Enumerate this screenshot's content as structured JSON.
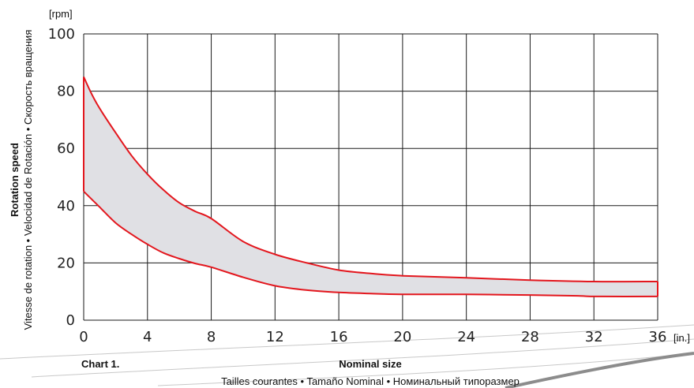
{
  "chart_data": {
    "type": "area",
    "title": "",
    "caption": "Chart 1.",
    "xlabel": "Nominal size",
    "xlabel_sub": "Tailles courantes • Tamaño Nominal • Номинальный типоразмер",
    "xunit": "[in.]",
    "ylabel": "Rotation speed",
    "ylabel_sub": "Vitesse de rotation • Velocidad de Rotación • Скорость вращения",
    "yunit": "[rpm]",
    "xlim": [
      0,
      36
    ],
    "ylim": [
      0,
      100
    ],
    "x_ticks": [
      0,
      4,
      8,
      12,
      16,
      20,
      24,
      28,
      32,
      36
    ],
    "x_tick_labels": [
      "0",
      "4",
      "8",
      "12",
      "16",
      "20",
      "24",
      "28",
      "32",
      "36"
    ],
    "y_ticks": [
      0,
      20,
      40,
      60,
      80,
      100
    ],
    "y_tick_labels": [
      "0",
      "20",
      "40",
      "60",
      "80",
      "100"
    ],
    "grid": true,
    "band_fill": "#e0e0e4",
    "line_color": "#e3161d",
    "series": [
      {
        "role": "upper",
        "x": [
          0,
          0.5,
          1,
          2,
          3,
          4,
          5,
          6,
          7,
          8,
          10,
          12,
          14,
          16,
          18,
          20,
          24,
          28,
          32,
          36
        ],
        "y": [
          85,
          79,
          74,
          65.5,
          57.5,
          51,
          45.5,
          41,
          38,
          35.5,
          27.5,
          23,
          20,
          17.5,
          16.3,
          15.5,
          14.8,
          14,
          13.5,
          13.5
        ]
      },
      {
        "role": "lower",
        "x": [
          0,
          1,
          2,
          3,
          4,
          5,
          6,
          7,
          8,
          10,
          12,
          14,
          16,
          18,
          20,
          24,
          28,
          31,
          32,
          36
        ],
        "y": [
          45,
          39.5,
          34,
          30,
          26.5,
          23.5,
          21.5,
          19.8,
          18.5,
          15,
          12,
          10.5,
          9.7,
          9.3,
          9,
          9,
          8.8,
          8.5,
          8.3,
          8.3
        ]
      }
    ]
  }
}
